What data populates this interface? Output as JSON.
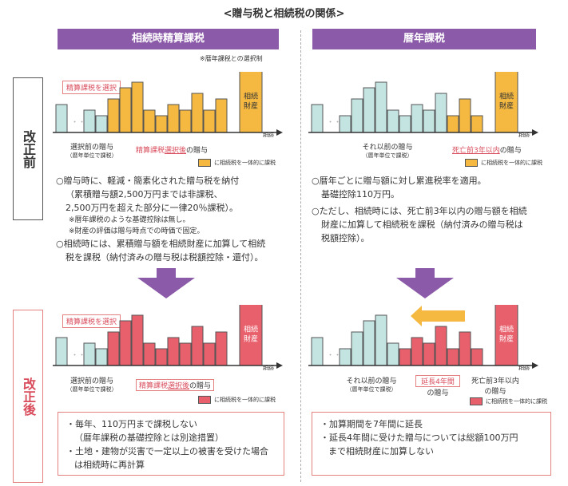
{
  "title": "<贈与税と相続税の関係>",
  "left_header": "相続時精算課税",
  "right_header": "暦年課税",
  "left_note": "※暦年課税との選択制",
  "side_before": "改正前",
  "side_after": "改正後",
  "inheritance_label": "相続財産",
  "axis_label": "相続",
  "legend_text": "に相続税を一体的に課税",
  "before_left": {
    "callout": "精算課税を選択",
    "label_prior": "選択前の贈与",
    "label_prior_sub": "（暦年単位で課税）",
    "label_after_pre": "精算課税",
    "label_after_em": "選択後",
    "label_after_post": "の贈与",
    "bullets": [
      "○贈与時に、軽減・簡素化された贈与税を納付",
      "（累積贈与額2,500万円までは非課税、",
      "2,500万円を超えた部分に一律20％課税）。"
    ],
    "notes": [
      "※暦年課税のような基礎控除は無し。",
      "※財産の評価は贈与時点での時価で固定。"
    ],
    "bullets2": [
      "○相続時には、累積贈与額を相続財産に加算して相続",
      "税を課税（納付済みの贈与税は税額控除・還付）。"
    ]
  },
  "before_right": {
    "label_prior": "それ以前の贈与",
    "label_prior_sub": "（暦年単位で課税）",
    "label_recent": "死亡前3年以内",
    "label_recent_post": "の贈与",
    "bullets": [
      "○暦年ごとに贈与額に対し累進税率を適用。",
      "基礎控除110万円。"
    ],
    "bullets2": [
      "○ただし、相続時には、死亡前3年以内の贈与額を相続",
      "財産に加算して相続税を課税（納付済みの贈与税は",
      "税額控除）。"
    ]
  },
  "after_left": {
    "callout": "精算課税を選択",
    "label_prior": "選択前の贈与",
    "label_prior_sub": "（暦年単位で課税）",
    "label_after_pre": "精算課税",
    "label_after_em": "選択後",
    "label_after_post": "の贈与",
    "box": [
      "・毎年、110万円まで課税しない",
      "（暦年課税の基礎控除とは別途措置）",
      "・土地・建物が災害で一定以上の被害を受けた場合",
      "は相続時に再計算"
    ]
  },
  "after_right": {
    "label_prior": "それ以前の贈与",
    "label_prior_sub": "（暦年単位で課税）",
    "label_ext": "延長4年間",
    "label_ext_post": "の贈与",
    "label_recent": "死亡前3年以内",
    "label_recent_post": "の贈与",
    "box": [
      "・加算期間を7年間に延長",
      "・延長4年間に受けた贈与については総額100万円",
      "まで相続財産に加算しない"
    ]
  },
  "colors": {
    "purple": "#8b5aa8",
    "teal": "#c4e4e2",
    "orange": "#f5b942",
    "red": "#e8606c",
    "outline": "#555555",
    "pink_text": "#d94c5c"
  },
  "chart_data": [
    {
      "type": "bar",
      "panel": "before-left",
      "series": [
        {
          "values": [
            5,
            0,
            0,
            4,
            3
          ],
          "color": "teal"
        },
        {
          "values": [
            6,
            8,
            9,
            4,
            3,
            5,
            4,
            7,
            4,
            6
          ],
          "color": "orange"
        }
      ],
      "inheritance_bar": 11
    },
    {
      "type": "bar",
      "panel": "before-right",
      "series": [
        {
          "values": [
            5,
            0,
            0,
            3,
            6,
            8,
            9,
            4,
            3,
            5,
            4,
            7
          ],
          "color": "teal"
        },
        {
          "values": [
            3,
            6,
            3
          ],
          "color": "orange"
        }
      ],
      "inheritance_bar": 11
    },
    {
      "type": "bar",
      "panel": "after-left",
      "series": [
        {
          "values": [
            5,
            0,
            0,
            4,
            3
          ],
          "color": "teal"
        },
        {
          "values": [
            6,
            8,
            9,
            4,
            3,
            5,
            4,
            7,
            4,
            6
          ],
          "color": "red"
        }
      ],
      "inheritance_bar": 11
    },
    {
      "type": "bar",
      "panel": "after-right",
      "series": [
        {
          "values": [
            5,
            0,
            0,
            3,
            6,
            8,
            9,
            4
          ],
          "color": "teal"
        },
        {
          "values": [
            3,
            5,
            4,
            7,
            3,
            6,
            3
          ],
          "color": "red"
        }
      ],
      "inheritance_bar": 11
    }
  ]
}
